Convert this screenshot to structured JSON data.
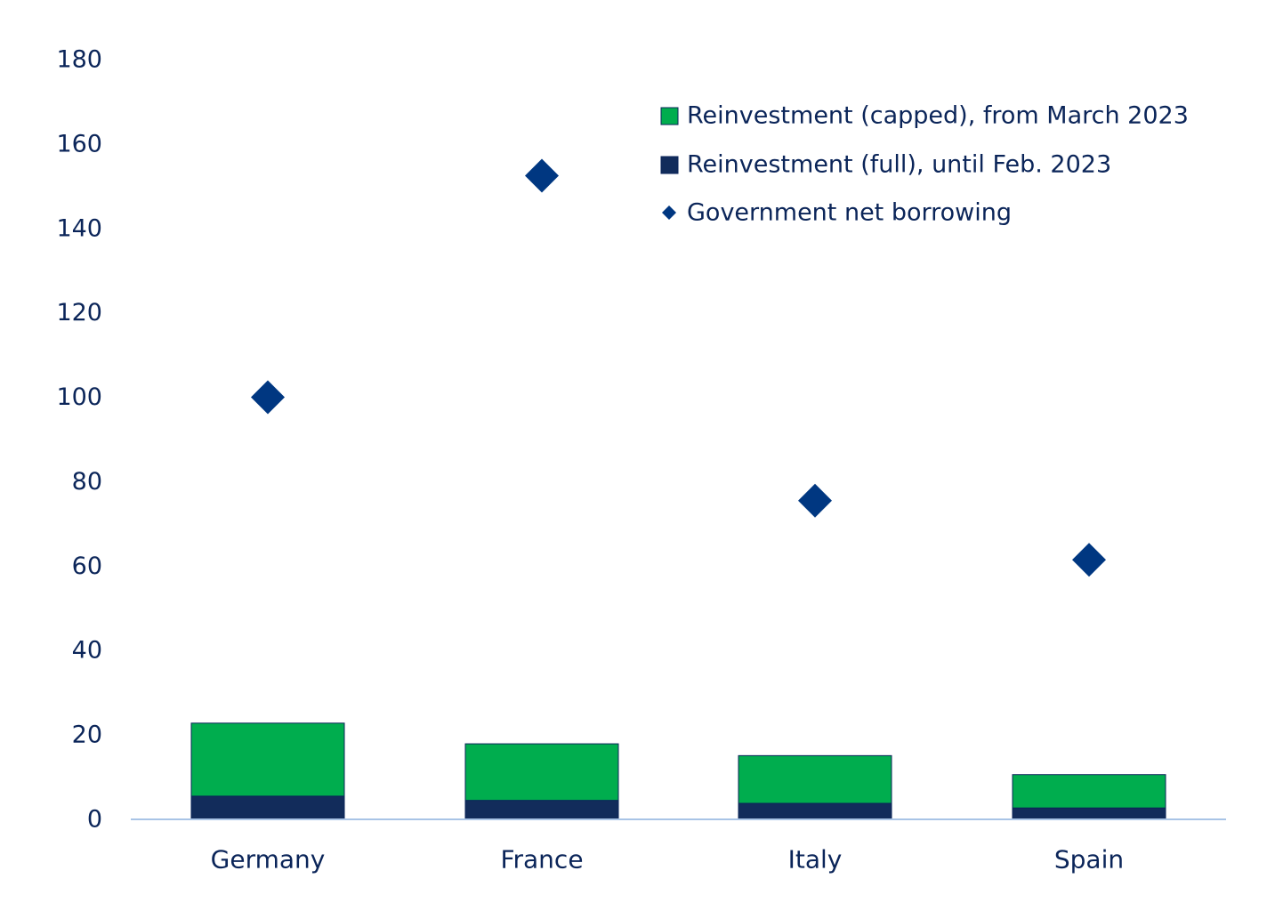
{
  "chart_data": {
    "type": "bar",
    "stacked": true,
    "categories": [
      "Germany",
      "France",
      "Italy",
      "Spain"
    ],
    "series": [
      {
        "name": "Reinvestment (full), until Feb. 2023",
        "kind": "bar",
        "color": "#122c5b",
        "values": [
          5.5,
          4.5,
          3.8,
          2.7
        ]
      },
      {
        "name": "Reinvestment (capped), from March 2023",
        "kind": "bar",
        "color": "#00ad4e",
        "values": [
          17.3,
          13.4,
          11.3,
          7.9
        ]
      },
      {
        "name": "Government net borrowing",
        "kind": "scatter",
        "marker": "diamond",
        "color": "#003781",
        "values": [
          100,
          152.5,
          75.5,
          61.5
        ]
      }
    ],
    "legend_order": [
      "Reinvestment (capped), from March 2023",
      "Reinvestment (full), until Feb. 2023",
      "Government net borrowing"
    ],
    "legend_position": "top-right",
    "ylim": [
      0,
      180
    ],
    "yticks": [
      0,
      20,
      40,
      60,
      80,
      100,
      120,
      140,
      160,
      180
    ],
    "grid": false,
    "title": "",
    "xlabel": "",
    "ylabel": ""
  }
}
